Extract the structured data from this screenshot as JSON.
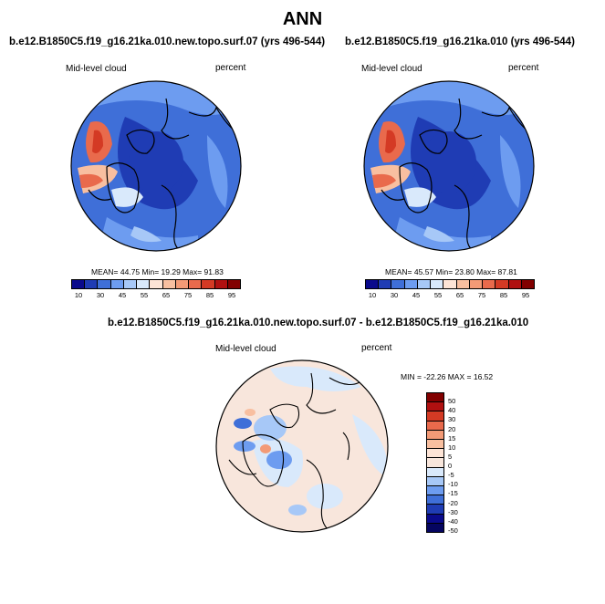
{
  "title": "ANN",
  "panels": [
    {
      "title": "b.e12.B1850C5.f19_g16.21ka.010.new.topo.surf.07 (yrs 496-544)",
      "left_label": "Mid-level cloud",
      "right_label": "percent",
      "stats": "MEAN=  44.75  Min=  19.29  Max=  91.83"
    },
    {
      "title": "b.e12.B1850C5.f19_g16.21ka.010 (yrs 496-544)",
      "left_label": "Mid-level cloud",
      "right_label": "percent",
      "stats": "MEAN=  45.57  Min=  23.80  Max=  87.81"
    },
    {
      "title": "b.e12.B1850C5.f19_g16.21ka.010.new.topo.surf.07 - b.e12.B1850C5.f19_g16.21ka.010",
      "left_label": "Mid-level cloud",
      "right_label": "percent",
      "stats": "MIN = -22.26 MAX =  16.52"
    }
  ],
  "colorbar_top": {
    "ticks": [
      "10",
      "30",
      "45",
      "55",
      "65",
      "75",
      "85",
      "95"
    ],
    "colors": [
      "#0a0a8c",
      "#1f3cb4",
      "#3f6fd8",
      "#6d9cf0",
      "#a7c8f7",
      "#d9e9fb",
      "#fde4d6",
      "#f8bfa0",
      "#f39a76",
      "#e96a4c",
      "#d43a24",
      "#b01010",
      "#820000"
    ]
  },
  "colorbar_diff": {
    "ticks": [
      "50",
      "40",
      "30",
      "20",
      "15",
      "10",
      "5",
      "0",
      "-5",
      "-10",
      "-15",
      "-20",
      "-30",
      "-40",
      "-50"
    ],
    "colors": [
      "#820000",
      "#b01010",
      "#d43a24",
      "#e96a4c",
      "#f39a76",
      "#f8bfa0",
      "#fde4d6",
      "#f8e6dc",
      "#d9e9fb",
      "#a7c8f7",
      "#6d9cf0",
      "#3f6fd8",
      "#1f3cb4",
      "#0a0a8c",
      "#050560"
    ]
  }
}
